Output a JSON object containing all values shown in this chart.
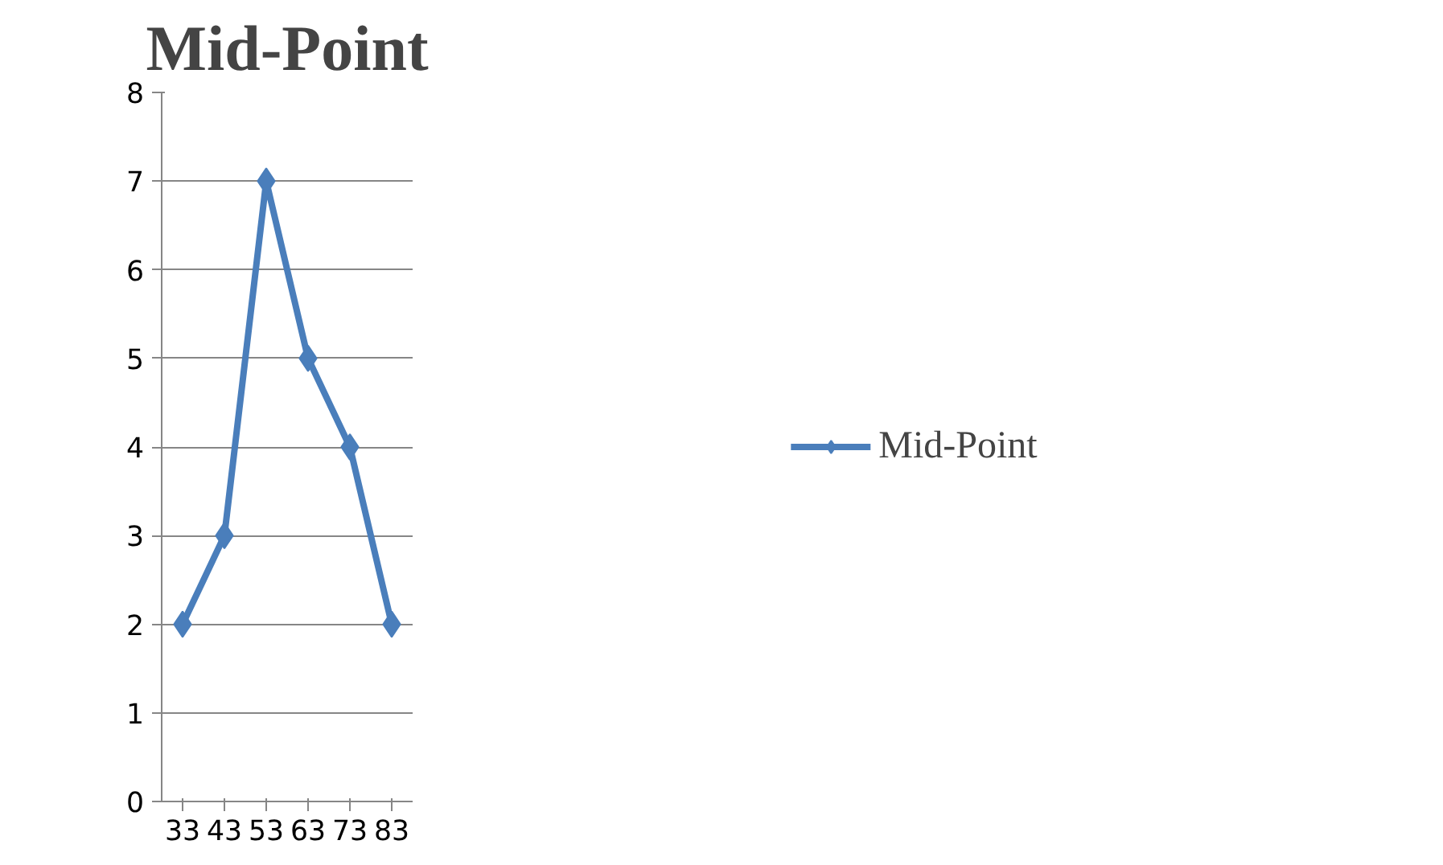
{
  "chart_data": {
    "type": "line",
    "title": "Mid-Point",
    "categories": [
      "33",
      "43",
      "53",
      "63",
      "73",
      "83"
    ],
    "series": [
      {
        "name": "Mid-Point",
        "color": "#4a7ebb",
        "values": [
          2,
          3,
          7,
          5,
          4,
          2
        ]
      }
    ],
    "ylim": [
      0,
      8
    ],
    "yticks": [
      0,
      1,
      2,
      3,
      4,
      5,
      6,
      7,
      8
    ],
    "grid": "y",
    "legend": "right",
    "marker": "diamond",
    "line_style": "solid"
  }
}
